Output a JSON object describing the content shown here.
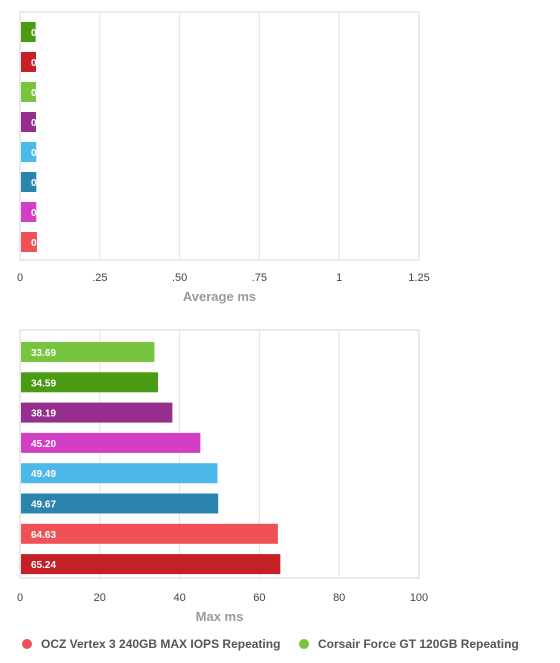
{
  "chart_data": [
    {
      "type": "bar",
      "orientation": "horizontal",
      "xlabel": "Average ms",
      "xlim": [
        0,
        1.25
      ],
      "ticks": [
        {
          "value": 0,
          "label": "0"
        },
        {
          "value": 0.25,
          "label": ".25"
        },
        {
          "value": 0.5,
          "label": ".50"
        },
        {
          "value": 0.75,
          "label": ".75"
        },
        {
          "value": 1,
          "label": "1"
        },
        {
          "value": 1.25,
          "label": "1.25"
        }
      ],
      "grid": true,
      "bars": [
        {
          "value": 0.049,
          "label": "0.049",
          "color": "#4a9a14"
        },
        {
          "value": 0.05,
          "label": "0.050",
          "color": "#c42026"
        },
        {
          "value": 0.05,
          "label": "0.050",
          "color": "#77c43e"
        },
        {
          "value": 0.05,
          "label": "0.050",
          "color": "#962e8e"
        },
        {
          "value": 0.051,
          "label": "0.051",
          "color": "#4db8ea"
        },
        {
          "value": 0.051,
          "label": "0.051",
          "color": "#2b84ae"
        },
        {
          "value": 0.051,
          "label": "0.051",
          "color": "#d23fc5"
        },
        {
          "value": 0.053,
          "label": "0.053",
          "color": "#ef5157"
        }
      ]
    },
    {
      "type": "bar",
      "orientation": "horizontal",
      "xlabel": "Max ms",
      "xlim": [
        0,
        100
      ],
      "ticks": [
        {
          "value": 0,
          "label": "0"
        },
        {
          "value": 20,
          "label": "20"
        },
        {
          "value": 40,
          "label": "40"
        },
        {
          "value": 60,
          "label": "60"
        },
        {
          "value": 80,
          "label": "80"
        },
        {
          "value": 100,
          "label": "100"
        }
      ],
      "grid": true,
      "bars": [
        {
          "value": 33.69,
          "label": "33.69",
          "color": "#77c43e"
        },
        {
          "value": 34.59,
          "label": "34.59",
          "color": "#4a9a14"
        },
        {
          "value": 38.19,
          "label": "38.19",
          "color": "#962e8e"
        },
        {
          "value": 45.2,
          "label": "45.20",
          "color": "#d23fc5"
        },
        {
          "value": 49.49,
          "label": "49.49",
          "color": "#4db8ea"
        },
        {
          "value": 49.67,
          "label": "49.67",
          "color": "#2b84ae"
        },
        {
          "value": 64.63,
          "label": "64.63",
          "color": "#ef5157"
        },
        {
          "value": 65.24,
          "label": "65.24",
          "color": "#c42026"
        }
      ]
    }
  ],
  "legend": {
    "position": "bottom",
    "items": [
      {
        "label": "OCZ Vertex 3 240GB MAX IOPS Repeating",
        "color": "#ef5157"
      },
      {
        "label": "Corsair Force GT 120GB Repeating",
        "color": "#77c43e"
      }
    ]
  }
}
